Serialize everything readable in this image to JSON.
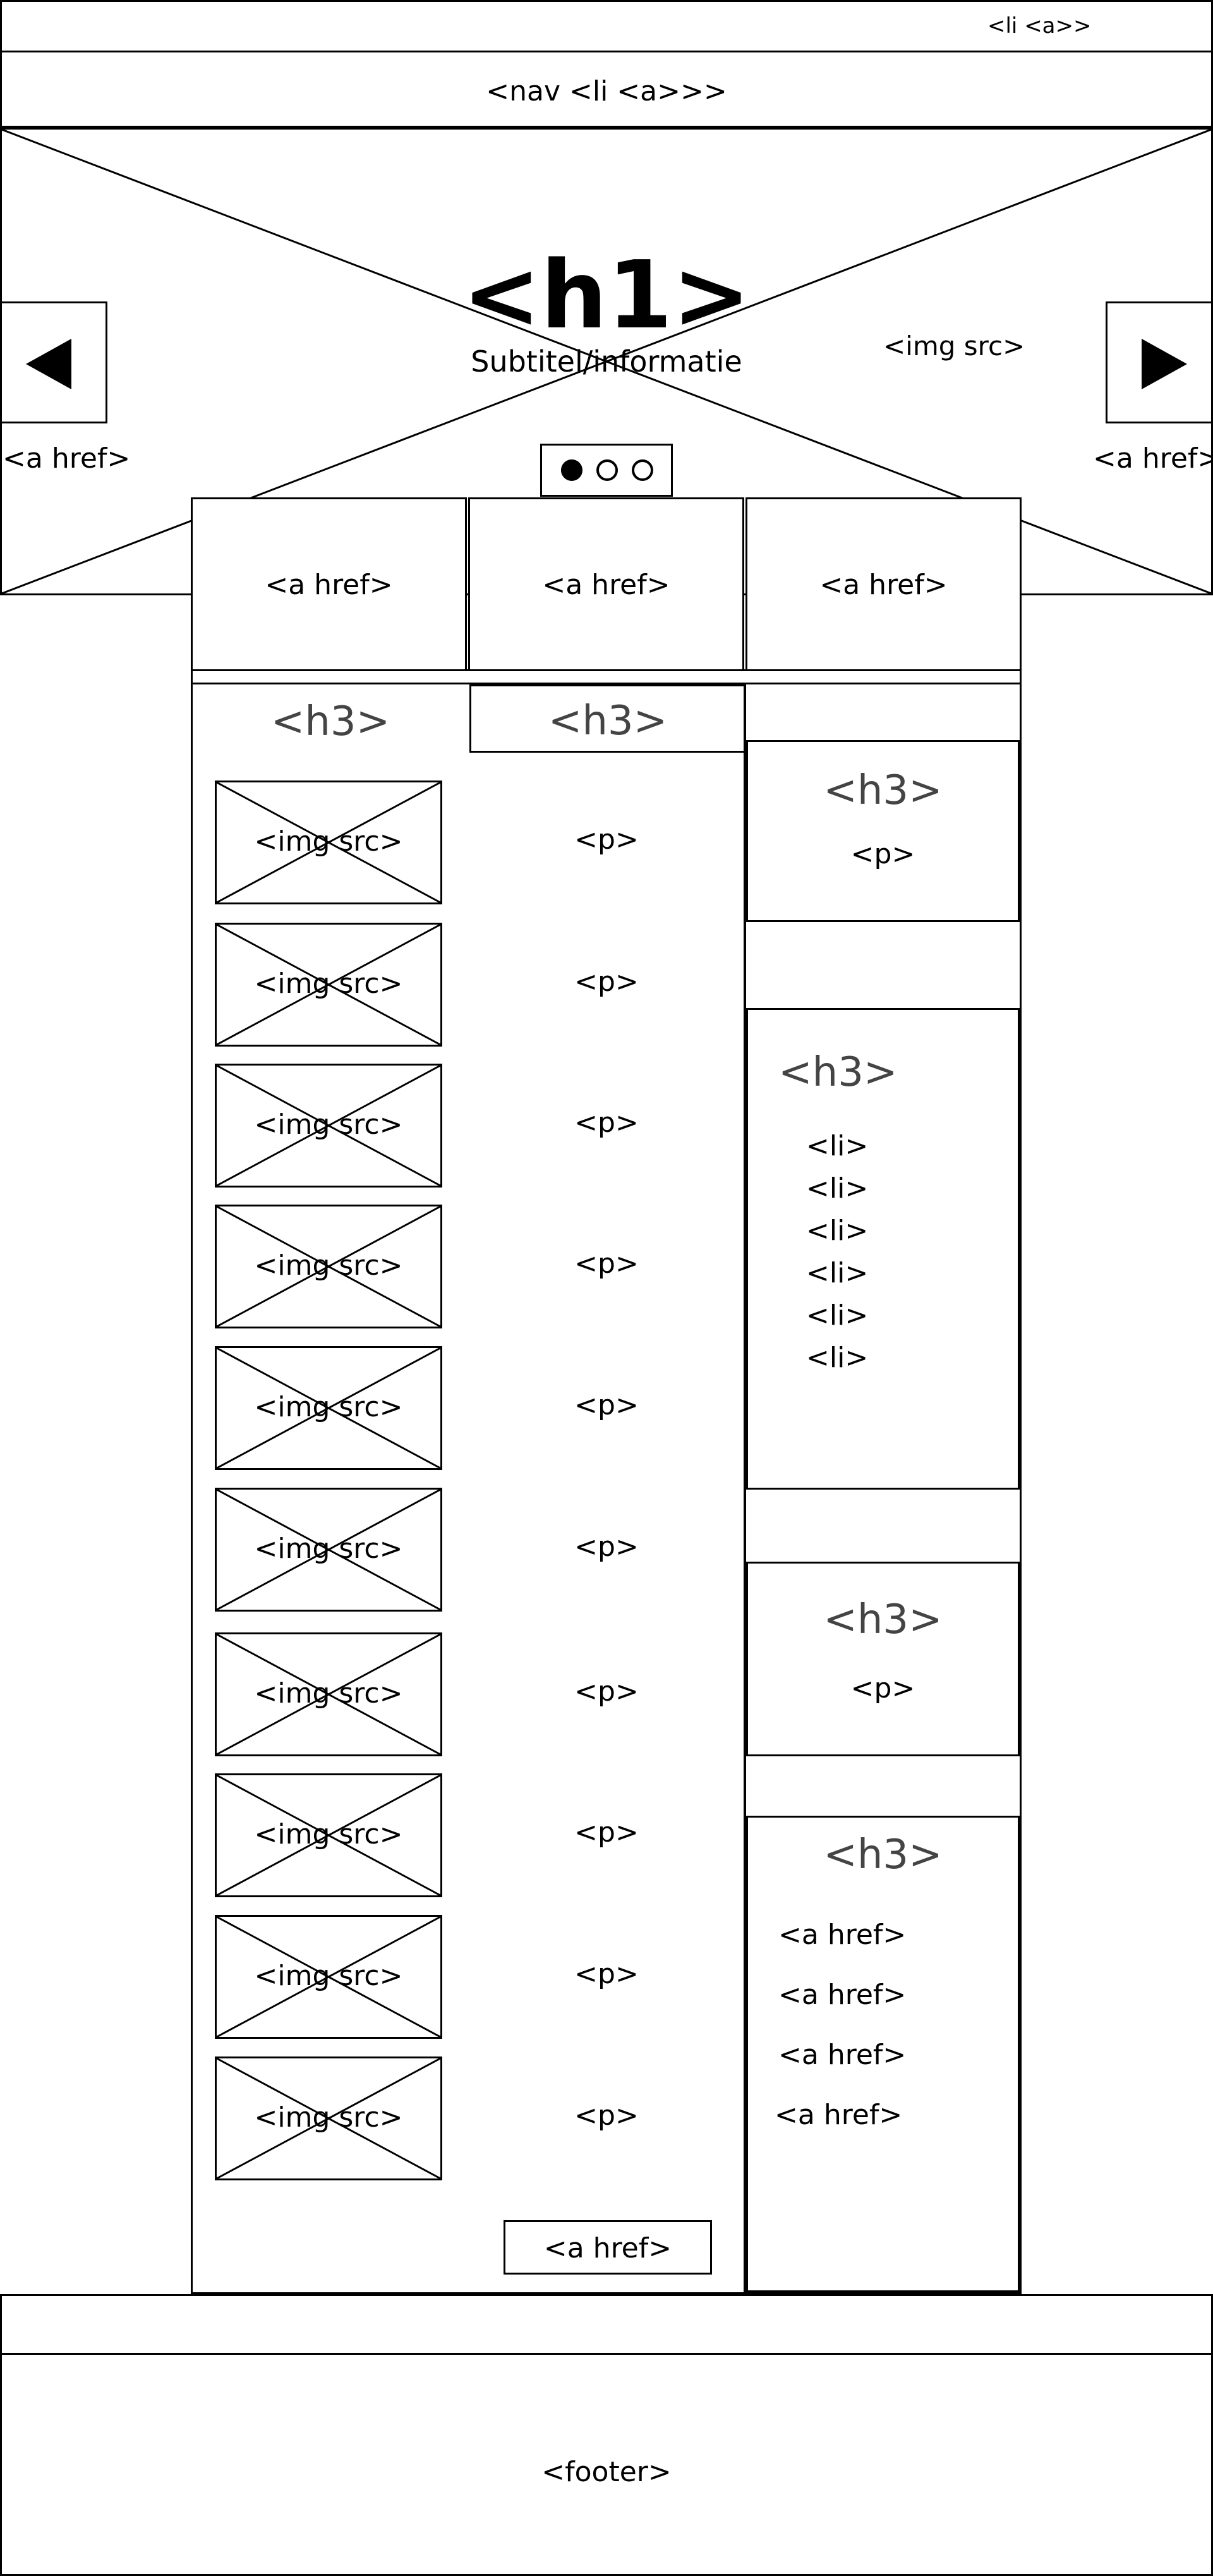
{
  "top_bar": {
    "li_label": "<li <a>>"
  },
  "nav_bar": {
    "label": "<nav <li <a>>>"
  },
  "hero": {
    "title": "<h1>",
    "subtitle": "Subtitel/informatie",
    "image_label": "<img src>",
    "prev_link": "<a href>",
    "next_link": "<a href>",
    "dots": {
      "count": 3,
      "active_index": 0
    }
  },
  "feature_links": [
    "<a href>",
    "<a href>",
    "<a href>"
  ],
  "tabs": [
    "<h3>",
    "<h3>"
  ],
  "list_items": [
    {
      "img": "<img src>",
      "text": "<p>"
    },
    {
      "img": "<img src>",
      "text": "<p>"
    },
    {
      "img": "<img src>",
      "text": "<p>"
    },
    {
      "img": "<img src>",
      "text": "<p>"
    },
    {
      "img": "<img src>",
      "text": "<p>"
    },
    {
      "img": "<img src>",
      "text": "<p>"
    },
    {
      "img": "<img src>",
      "text": "<p>"
    },
    {
      "img": "<img src>",
      "text": "<p>"
    },
    {
      "img": "<img src>",
      "text": "<p>"
    },
    {
      "img": "<img src>",
      "text": "<p>"
    }
  ],
  "more_link": "<a href>",
  "sidebar": {
    "box1": {
      "heading": "<h3>",
      "text": "<p>"
    },
    "box2": {
      "heading": "<h3>",
      "items": [
        "<li>",
        "<li>",
        "<li>",
        "<li>",
        "<li>",
        "<li>"
      ]
    },
    "box3": {
      "heading": "<h3>",
      "text": "<p>"
    },
    "box4": {
      "heading": "<h3>",
      "links": [
        "<a href>",
        "<a href>",
        "<a href>",
        "<a href>"
      ]
    }
  },
  "footer": {
    "label": "<footer>"
  }
}
